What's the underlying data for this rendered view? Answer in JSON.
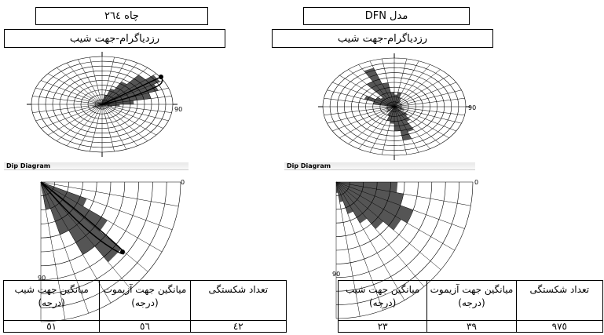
{
  "left": {
    "title": "چاه ٢٦٤",
    "subtitle": "رزدیاگرام-جهت شیب",
    "rose_east_label": "90",
    "dip_strip_label": "Dip Diagram",
    "dip_label_0": "0",
    "dip_label_90": "90",
    "table": {
      "headers": [
        "تعداد شکستگی",
        "میانگین جهت آزیموت (درجه)",
        "میانگین جهت شیب (درجه)"
      ],
      "values": [
        "٤٢",
        "٥٦",
        "٥١"
      ]
    }
  },
  "right": {
    "title": "مدل DFN",
    "subtitle": "رزدیاگرام-جهت شیب",
    "rose_east_label": "90",
    "dip_strip_label": "Dip Diagram",
    "dip_label_0": "0",
    "dip_label_90": "90",
    "table": {
      "headers": [
        "تعداد شکستگی",
        "میانگین جهت آزیموت (درجه)",
        "میانگین جهت شیب (درجه)"
      ],
      "values": [
        "٩٧٥",
        "٣٩",
        "٢٣"
      ]
    }
  },
  "colors": {
    "fill": "#555555",
    "grid": "#000000"
  }
}
